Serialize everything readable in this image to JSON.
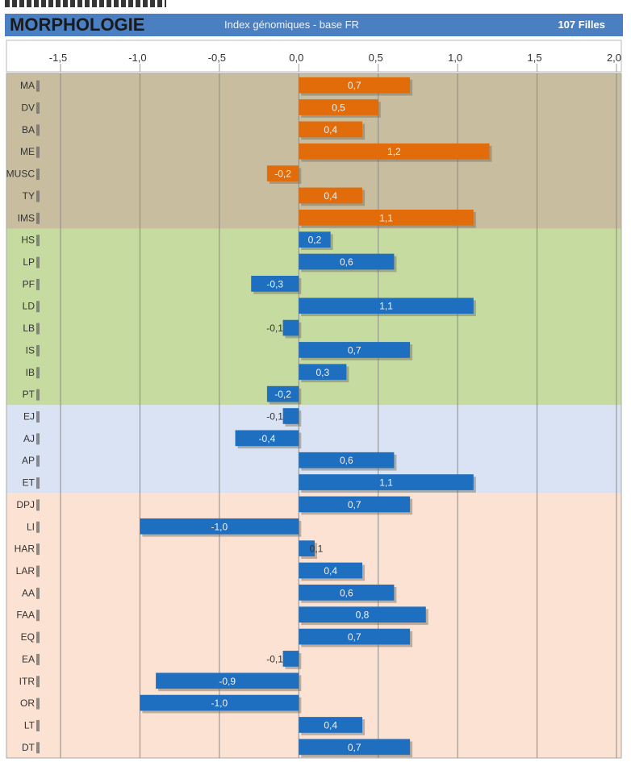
{
  "header": {
    "title": "MORPHOLOGIE",
    "subtitle": "Index génomiques - base FR",
    "count": "107 Filles"
  },
  "colors": {
    "header_bg": "#4a7fc1",
    "orange_bar": "#e36c0a",
    "blue_bar": "#1f6fc0",
    "band_1": "#c8bd9e",
    "band_2": "#c6dba0",
    "band_3": "#d9e3f3",
    "band_4": "#fbe2d3"
  },
  "chart_data": {
    "type": "bar",
    "orientation": "horizontal",
    "xlim": [
      -1.5,
      2.0
    ],
    "x_ticks": [
      "-1,5",
      "-1,0",
      "-0,5",
      "0,0",
      "0,5",
      "1,0",
      "1,5",
      "2,0"
    ],
    "x_tick_values": [
      -1.5,
      -1.0,
      -0.5,
      0.0,
      0.5,
      1.0,
      1.5,
      2.0
    ],
    "grid": true,
    "categories": [
      "MA",
      "DV",
      "BA",
      "ME",
      "MUSC",
      "TY",
      "IMS",
      "HS",
      "LP",
      "PF",
      "LD",
      "LB",
      "IS",
      "IB",
      "PT",
      "EJ",
      "AJ",
      "AP",
      "ET",
      "DPJ",
      "LI",
      "HAR",
      "LAR",
      "AA",
      "FAA",
      "EQ",
      "EA",
      "ITR",
      "OR",
      "LT",
      "DT"
    ],
    "values": [
      0.7,
      0.5,
      0.4,
      1.2,
      -0.2,
      0.4,
      1.1,
      0.2,
      0.6,
      -0.3,
      1.1,
      -0.1,
      0.7,
      0.3,
      -0.2,
      -0.1,
      -0.4,
      0.6,
      1.1,
      0.7,
      -1.0,
      0.1,
      0.4,
      0.6,
      0.8,
      0.7,
      -0.1,
      -0.9,
      -1.0,
      0.4,
      0.7
    ],
    "value_labels": [
      "0,7",
      "0,5",
      "0,4",
      "1,2",
      "-0,2",
      "0,4",
      "1,1",
      "0,2",
      "0,6",
      "-0,3",
      "1,1",
      "-0,1",
      "0,7",
      "0,3",
      "-0,2",
      "-0,1",
      "-0,4",
      "0,6",
      "1,1",
      "0,7",
      "-1,0",
      "0,1",
      "0,4",
      "0,6",
      "0,8",
      "0,7",
      "-0,1",
      "-0,9",
      "-1,0",
      "0,4",
      "0,7"
    ],
    "bar_colors": [
      "orange",
      "orange",
      "orange",
      "orange",
      "orange",
      "orange",
      "orange",
      "blue",
      "blue",
      "blue",
      "blue",
      "blue",
      "blue",
      "blue",
      "blue",
      "blue",
      "blue",
      "blue",
      "blue",
      "blue",
      "blue",
      "blue",
      "blue",
      "blue",
      "blue",
      "blue",
      "blue",
      "blue",
      "blue",
      "blue",
      "blue"
    ],
    "groups": [
      {
        "band": "band_1",
        "first": 0,
        "last": 6
      },
      {
        "band": "band_2",
        "first": 7,
        "last": 14
      },
      {
        "band": "band_3",
        "first": 15,
        "last": 18
      },
      {
        "band": "band_4",
        "first": 19,
        "last": 30
      }
    ]
  }
}
